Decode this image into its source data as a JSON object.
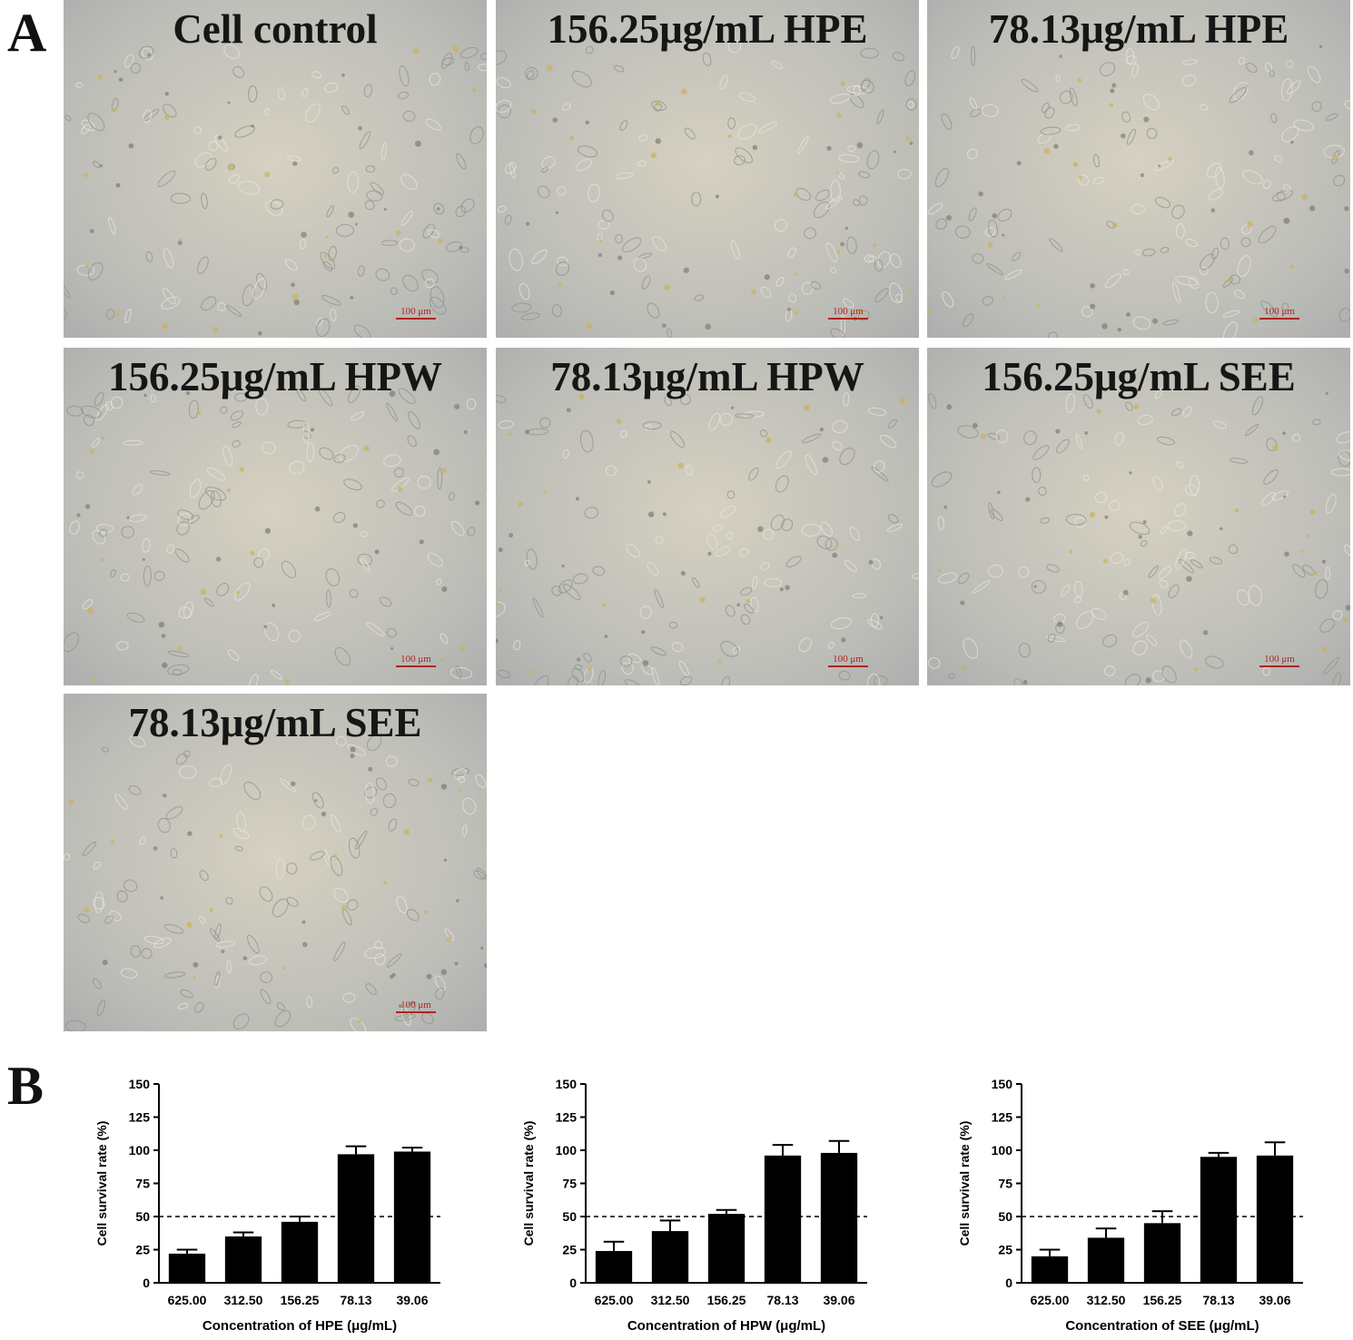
{
  "panel_a": {
    "letter": "A",
    "images": [
      {
        "title": "Cell control",
        "scale": "100 μm"
      },
      {
        "title": "156.25μg/mL HPE",
        "scale": "100 μm"
      },
      {
        "title": "78.13μg/mL HPE",
        "scale": "100 μm"
      },
      {
        "title": "156.25μg/mL HPW",
        "scale": "100 μm"
      },
      {
        "title": "78.13μg/mL HPW",
        "scale": "100 μm"
      },
      {
        "title": "156.25μg/mL SEE",
        "scale": "100 μm"
      },
      {
        "title": "78.13μg/mL SEE",
        "scale": "100 μm"
      }
    ]
  },
  "panel_b": {
    "letter": "B"
  },
  "chart_data": [
    {
      "type": "bar",
      "categories": [
        "625.00",
        "312.50",
        "156.25",
        "78.13",
        "39.06"
      ],
      "values": [
        22,
        35,
        46,
        97,
        99
      ],
      "errors": [
        3,
        3,
        4,
        6,
        3
      ],
      "xlabel": "Concentration of HPE (μg/mL)",
      "ylabel": "Cell survival rate (%)",
      "ylim": [
        0,
        150
      ],
      "yticks": [
        0,
        25,
        50,
        75,
        100,
        125,
        150
      ],
      "reference_line": 50,
      "bar_color": "#000000"
    },
    {
      "type": "bar",
      "categories": [
        "625.00",
        "312.50",
        "156.25",
        "78.13",
        "39.06"
      ],
      "values": [
        24,
        39,
        52,
        96,
        98
      ],
      "errors": [
        7,
        8,
        3,
        8,
        9
      ],
      "xlabel": "Concentration of HPW (μg/mL)",
      "ylabel": "Cell survival rate (%)",
      "ylim": [
        0,
        150
      ],
      "yticks": [
        0,
        25,
        50,
        75,
        100,
        125,
        150
      ],
      "reference_line": 50,
      "bar_color": "#000000"
    },
    {
      "type": "bar",
      "categories": [
        "625.00",
        "312.50",
        "156.25",
        "78.13",
        "39.06"
      ],
      "values": [
        20,
        34,
        45,
        95,
        96
      ],
      "errors": [
        5,
        7,
        9,
        3,
        10
      ],
      "xlabel": "Concentration of SEE (μg/mL)",
      "ylabel": "Cell survival rate (%)",
      "ylim": [
        0,
        150
      ],
      "yticks": [
        0,
        25,
        50,
        75,
        100,
        125,
        150
      ],
      "reference_line": 50,
      "bar_color": "#000000"
    }
  ]
}
